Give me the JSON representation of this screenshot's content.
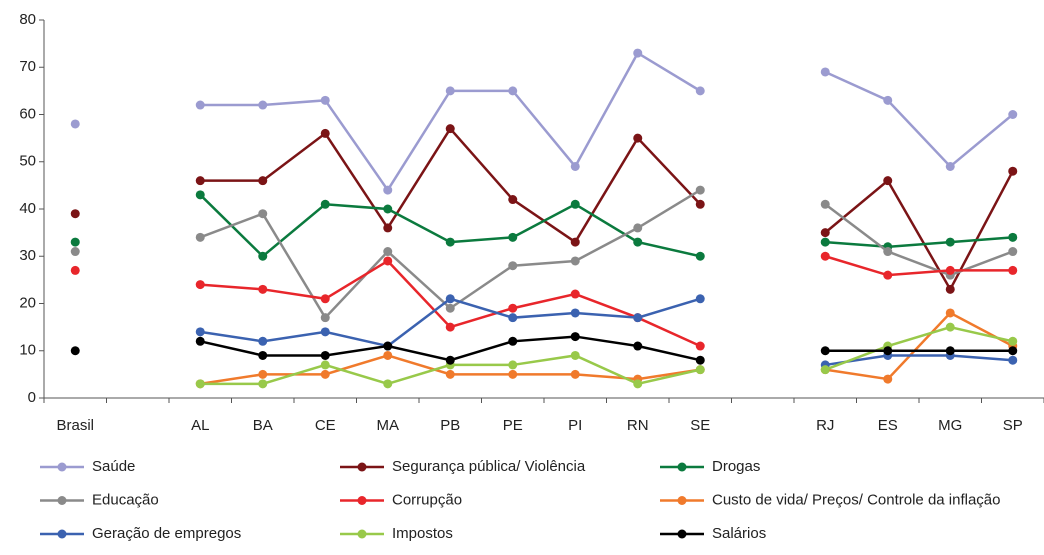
{
  "chart_data": {
    "type": "line",
    "categories": [
      "Brasil",
      null,
      "AL",
      "BA",
      "CE",
      "MA",
      "PB",
      "PE",
      "PI",
      "RN",
      "SE",
      null,
      "RJ",
      "ES",
      "MG",
      "SP"
    ],
    "ylim": [
      0,
      80
    ],
    "yticks": [
      0,
      10,
      20,
      30,
      40,
      50,
      60,
      70,
      80
    ],
    "series": [
      {
        "name": "Saúde",
        "color": "#9b9bd0",
        "values": [
          58,
          null,
          62,
          62,
          63,
          44,
          65,
          65,
          49,
          73,
          65,
          null,
          69,
          63,
          49,
          60
        ]
      },
      {
        "name": "Segurança pública/ Violência",
        "color": "#7b1416",
        "values": [
          39,
          null,
          46,
          46,
          56,
          36,
          57,
          42,
          33,
          55,
          41,
          null,
          35,
          46,
          23,
          48
        ]
      },
      {
        "name": "Drogas",
        "color": "#0b7a3e",
        "values": [
          33,
          null,
          43,
          30,
          41,
          40,
          33,
          34,
          41,
          33,
          30,
          null,
          33,
          32,
          33,
          34
        ]
      },
      {
        "name": "Educação",
        "color": "#8a8a8a",
        "values": [
          31,
          null,
          34,
          39,
          17,
          31,
          19,
          28,
          29,
          36,
          44,
          null,
          41,
          31,
          26,
          31
        ]
      },
      {
        "name": "Corrupção",
        "color": "#e8262b",
        "values": [
          27,
          null,
          24,
          23,
          21,
          29,
          15,
          19,
          22,
          17,
          11,
          null,
          30,
          26,
          27,
          27
        ]
      },
      {
        "name": "Custo de vida/ Preços/ Controle da inflação",
        "color": "#f07a2c",
        "values": [
          null,
          null,
          3,
          5,
          5,
          9,
          5,
          5,
          5,
          4,
          6,
          null,
          6,
          4,
          18,
          11
        ]
      },
      {
        "name": "Geração de empregos",
        "color": "#3b62b0",
        "values": [
          null,
          null,
          14,
          12,
          14,
          11,
          21,
          17,
          18,
          17,
          21,
          null,
          7,
          9,
          9,
          8
        ]
      },
      {
        "name": "Impostos",
        "color": "#98c94a",
        "values": [
          null,
          null,
          3,
          3,
          7,
          3,
          7,
          7,
          9,
          3,
          6,
          null,
          6,
          11,
          15,
          12
        ]
      },
      {
        "name": "Salários",
        "color": "#000000",
        "values": [
          10,
          null,
          12,
          9,
          9,
          11,
          8,
          12,
          13,
          11,
          8,
          null,
          10,
          10,
          10,
          10
        ]
      }
    ]
  }
}
